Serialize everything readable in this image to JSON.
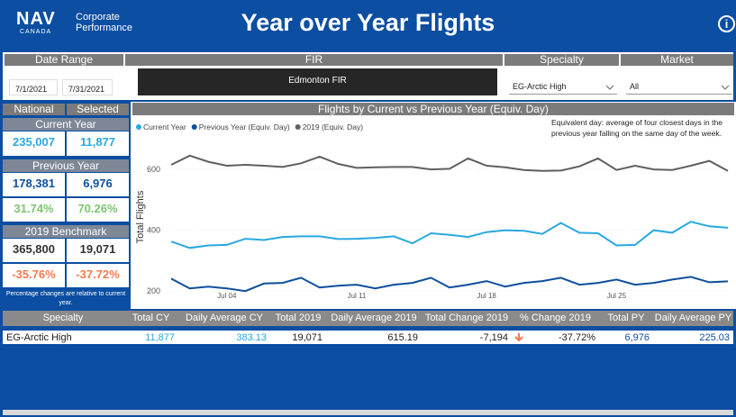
{
  "header": {
    "logo": "NAV",
    "logo_sub": "CANADA",
    "subtitle_1": "Corporate",
    "subtitle_2": "Performance",
    "title": "Year over Year Flights",
    "info": "i"
  },
  "filters": {
    "date_range": {
      "label": "Date Range",
      "start": "7/1/2021",
      "end": "7/31/2021"
    },
    "fir": {
      "label": "FIR",
      "value": "Edmonton FIR"
    },
    "specialty": {
      "label": "Specialty",
      "value": "EG-Arctic High"
    },
    "market": {
      "label": "Market",
      "value": "All"
    }
  },
  "kpis": {
    "columns": [
      "National",
      "Selected"
    ],
    "current_year": {
      "title": "Current Year",
      "values": [
        "235,007",
        "11,877"
      ]
    },
    "previous_year": {
      "title": "Previous Year",
      "values": [
        "178,381",
        "6,976"
      ],
      "changes": [
        "31.74%",
        "70.26%"
      ]
    },
    "benchmark": {
      "title": "2019 Benchmark",
      "values": [
        "365,800",
        "19,071"
      ],
      "changes": [
        "-35.76%",
        "-37.72%"
      ]
    },
    "note": "Percentage changes are relative to current year."
  },
  "chart_data": {
    "type": "line",
    "title": "Flights by Current vs Previous Year (Equiv. Day)",
    "y_label": "Total Flights",
    "annotation": "Equivalent day: average of four closest days in the previous year falling on the same day of the week.",
    "x": [
      "Jul 01",
      "Jul 02",
      "Jul 03",
      "Jul 04",
      "Jul 05",
      "Jul 06",
      "Jul 07",
      "Jul 08",
      "Jul 09",
      "Jul 10",
      "Jul 11",
      "Jul 12",
      "Jul 13",
      "Jul 14",
      "Jul 15",
      "Jul 16",
      "Jul 17",
      "Jul 18",
      "Jul 19",
      "Jul 20",
      "Jul 21",
      "Jul 22",
      "Jul 23",
      "Jul 24",
      "Jul 25",
      "Jul 26",
      "Jul 27",
      "Jul 28",
      "Jul 29",
      "Jul 30",
      "Jul 31"
    ],
    "xticks": [
      "Jul 04",
      "Jul 11",
      "Jul 18",
      "Jul 25"
    ],
    "ylim": [
      180,
      720
    ],
    "yticks": [
      200,
      400,
      600
    ],
    "series": [
      {
        "name": "Current Year",
        "color": "#29a8e0",
        "values": [
          363,
          342,
          350,
          352,
          372,
          368,
          378,
          380,
          380,
          371,
          372,
          375,
          380,
          357,
          390,
          385,
          378,
          394,
          400,
          398,
          388,
          424,
          392,
          390,
          350,
          352,
          400,
          392,
          428,
          413,
          408
        ]
      },
      {
        "name": "Previous Year (Equiv. Day)",
        "color": "#0d4f9c",
        "values": [
          241,
          209,
          215,
          209,
          200,
          225,
          227,
          244,
          212,
          218,
          221,
          209,
          221,
          227,
          244,
          212,
          221,
          233,
          215,
          227,
          233,
          244,
          221,
          227,
          238,
          221,
          227,
          238,
          247,
          229,
          232
        ]
      },
      {
        "name": "2019 (Equiv. Day)",
        "color": "#5f5f5f",
        "values": [
          615,
          645,
          625,
          612,
          615,
          612,
          608,
          620,
          642,
          618,
          605,
          607,
          608,
          608,
          600,
          602,
          636,
          612,
          607,
          598,
          595,
          596,
          610,
          636,
          598,
          612,
          600,
          598,
          612,
          628,
          595
        ]
      }
    ]
  },
  "table": {
    "columns": [
      "Specialty",
      "Total CY",
      "Daily Average CY",
      "Total 2019",
      "Daily Average 2019",
      "Total Change 2019",
      "% Change 2019",
      "Total PY",
      "Daily Average PY"
    ],
    "rows": [
      [
        "EG-Arctic High",
        "11,877",
        "383.13",
        "19,071",
        "615.19",
        "-7,194",
        "-37.72%",
        "6,976",
        "225.03"
      ]
    ]
  }
}
